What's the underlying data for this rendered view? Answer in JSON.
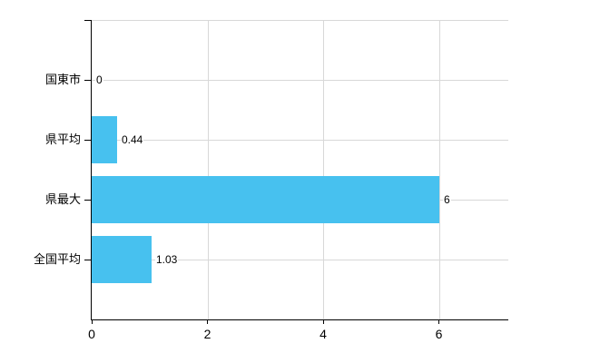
{
  "chart_data": {
    "type": "bar",
    "orientation": "horizontal",
    "title": "",
    "xlabel": "",
    "ylabel": "",
    "categories": [
      "国東市",
      "県平均",
      "県最大",
      "全国平均"
    ],
    "values": [
      0,
      0.44,
      6,
      1.03
    ],
    "value_labels": [
      "0",
      "0.44",
      "6",
      "1.03"
    ],
    "x_ticks": [
      0,
      2,
      4,
      6
    ],
    "x_tick_labels": [
      "0",
      "2",
      "4",
      "6"
    ],
    "xlim": [
      0,
      7.2
    ],
    "grid": true,
    "legend": false,
    "colors": {
      "bar": "#47C1EF",
      "axis": "#000000",
      "gridline": "#d8d8d8",
      "label": "#000000",
      "background": "#ffffff"
    }
  }
}
